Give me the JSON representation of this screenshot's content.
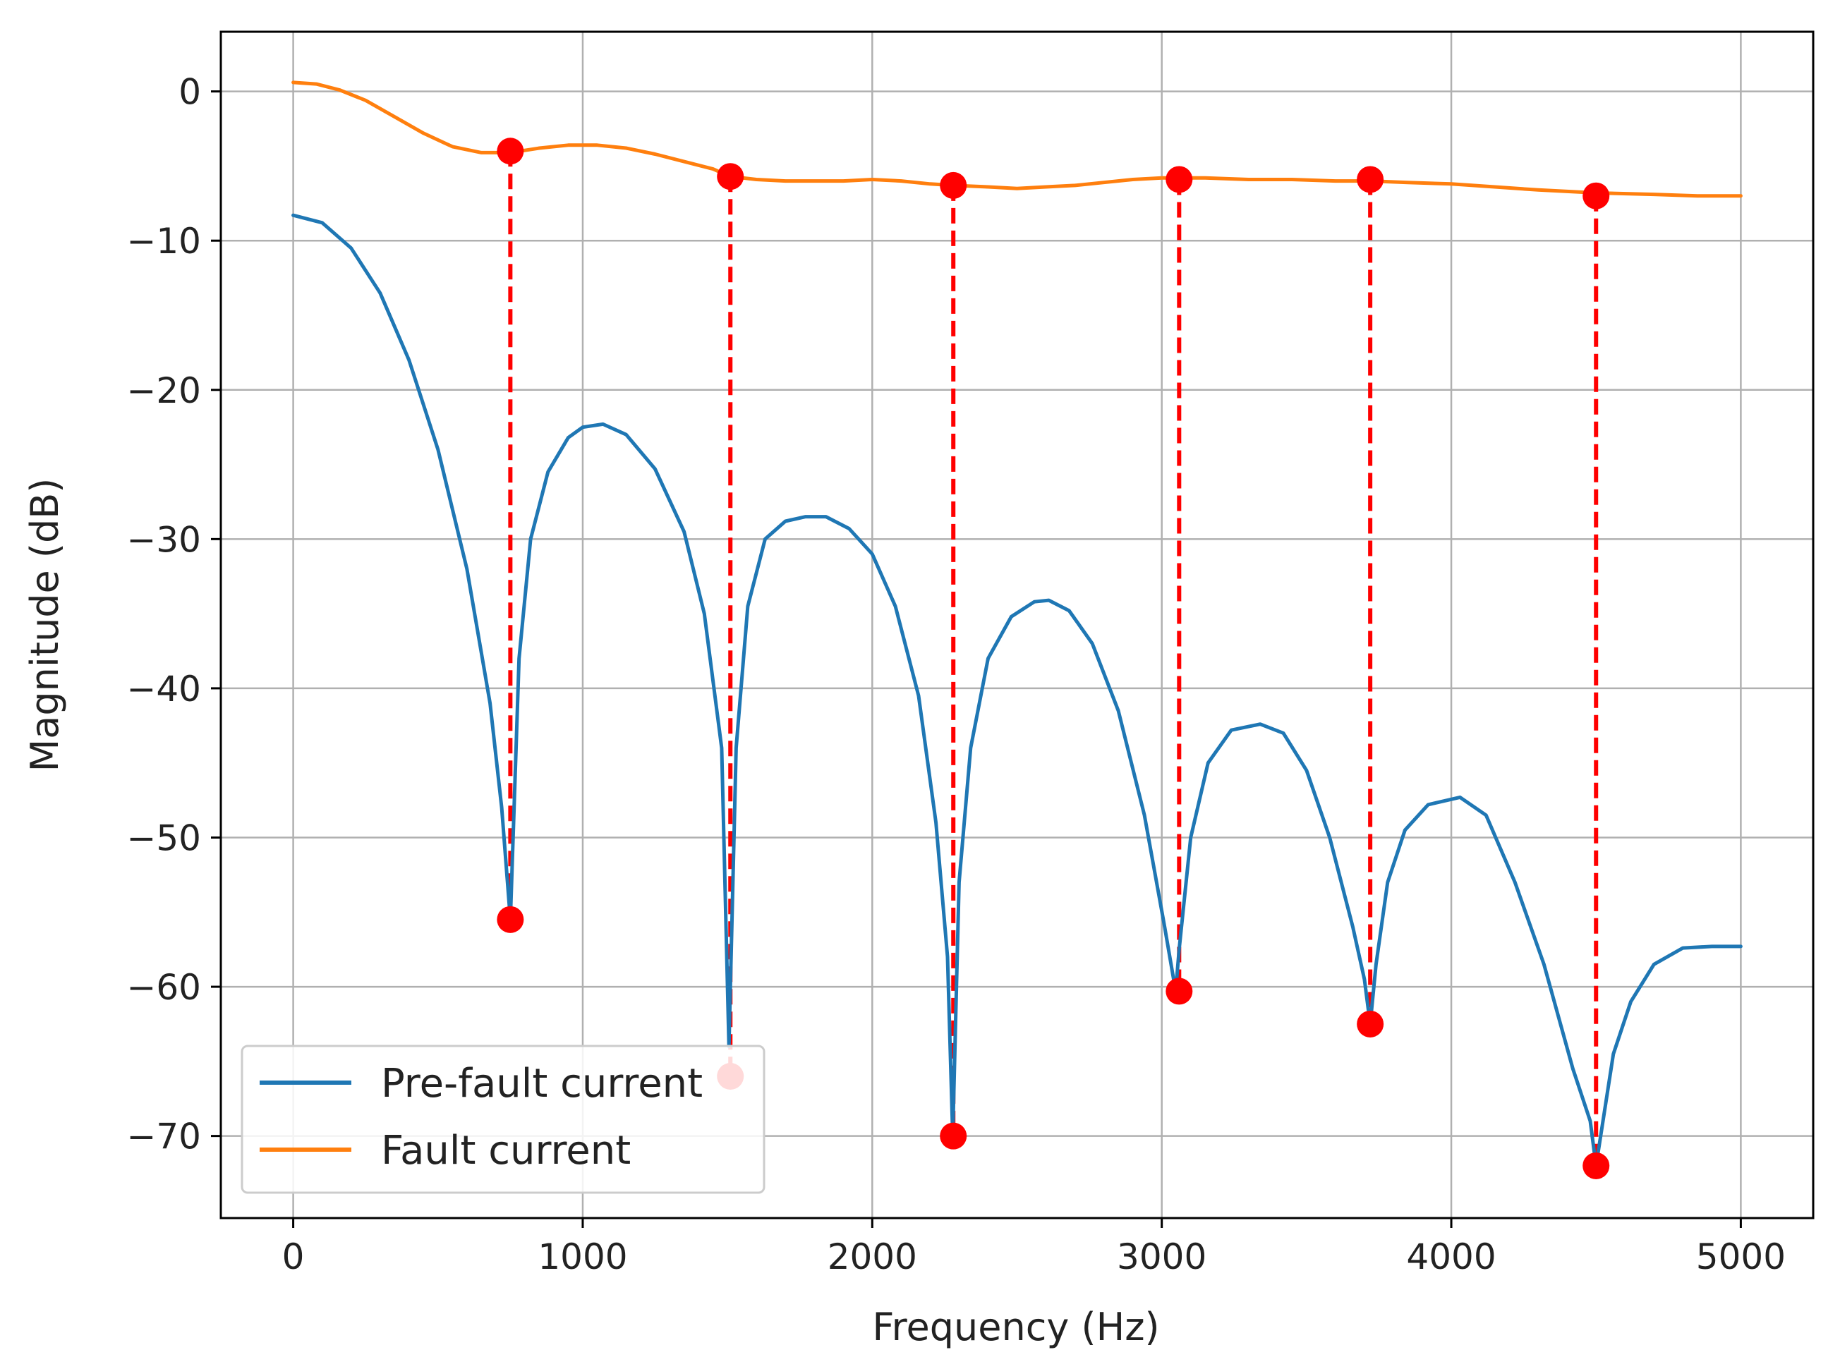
{
  "chart_data": {
    "type": "line",
    "title": "",
    "xlabel": "Frequency (Hz)",
    "ylabel": "Magnitude (dB)",
    "xlim": [
      -250,
      5250
    ],
    "ylim": [
      -75.5,
      4
    ],
    "xticks": [
      0,
      1000,
      2000,
      3000,
      4000,
      5000
    ],
    "xtick_labels": [
      "0",
      "1000",
      "2000",
      "3000",
      "4000",
      "5000"
    ],
    "yticks": [
      0,
      -10,
      -20,
      -30,
      -40,
      -50,
      -60,
      -70
    ],
    "ytick_labels": [
      "0",
      "−10",
      "−20",
      "−30",
      "−40",
      "−50",
      "−60",
      "−70"
    ],
    "grid": true,
    "legend_position": "lower-left",
    "colors": {
      "pre_fault": "#1f77b4",
      "fault": "#ff7f0e",
      "markers": "#ff0000",
      "grid": "#b0b0b0"
    },
    "series": [
      {
        "name": "Pre-fault current",
        "x": [
          0,
          100,
          200,
          300,
          400,
          500,
          600,
          680,
          720,
          750,
          780,
          820,
          880,
          950,
          1000,
          1070,
          1150,
          1250,
          1350,
          1420,
          1480,
          1505,
          1530,
          1570,
          1630,
          1700,
          1770,
          1840,
          1920,
          2000,
          2080,
          2160,
          2220,
          2260,
          2278,
          2300,
          2340,
          2400,
          2480,
          2560,
          2610,
          2680,
          2760,
          2850,
          2940,
          3010,
          3048,
          3060,
          3100,
          3160,
          3240,
          3340,
          3420,
          3500,
          3580,
          3660,
          3700,
          3720,
          3740,
          3780,
          3840,
          3920,
          4030,
          4120,
          4220,
          4320,
          4420,
          4480,
          4500,
          4520,
          4560,
          4620,
          4700,
          4800,
          4900,
          5000
        ],
        "values": [
          -8.3,
          -8.8,
          -10.5,
          -13.5,
          -18.0,
          -24.0,
          -32.0,
          -41.0,
          -48.0,
          -55.5,
          -38.0,
          -30.0,
          -25.5,
          -23.2,
          -22.5,
          -22.3,
          -23.0,
          -25.3,
          -29.5,
          -35.0,
          -44.0,
          -64.0,
          -44.0,
          -34.5,
          -30.0,
          -28.8,
          -28.5,
          -28.5,
          -29.3,
          -31.0,
          -34.5,
          -40.5,
          -49.0,
          -58.0,
          -70.0,
          -53.0,
          -44.0,
          -38.0,
          -35.2,
          -34.2,
          -34.1,
          -34.8,
          -37.0,
          -41.5,
          -48.5,
          -56.0,
          -60.3,
          -57.5,
          -50.0,
          -45.0,
          -42.8,
          -42.4,
          -43.0,
          -45.5,
          -50.0,
          -56.0,
          -59.5,
          -62.5,
          -58.5,
          -53.0,
          -49.5,
          -47.8,
          -47.3,
          -48.5,
          -53.0,
          -58.5,
          -65.5,
          -69.0,
          -72.0,
          -69.5,
          -64.5,
          -61.0,
          -58.5,
          -57.4,
          -57.3,
          -57.3
        ]
      },
      {
        "name": "Fault current",
        "x": [
          0,
          80,
          160,
          250,
          350,
          450,
          550,
          650,
          750,
          850,
          950,
          1050,
          1150,
          1250,
          1350,
          1450,
          1510,
          1600,
          1700,
          1800,
          1900,
          2000,
          2100,
          2200,
          2280,
          2400,
          2500,
          2600,
          2700,
          2800,
          2900,
          3000,
          3060,
          3150,
          3300,
          3450,
          3600,
          3720,
          3850,
          4000,
          4150,
          4300,
          4500,
          4700,
          4850,
          5000
        ],
        "values": [
          0.6,
          0.5,
          0.1,
          -0.6,
          -1.7,
          -2.8,
          -3.7,
          -4.1,
          -4.1,
          -3.8,
          -3.6,
          -3.6,
          -3.8,
          -4.2,
          -4.7,
          -5.2,
          -5.7,
          -5.9,
          -6.0,
          -6.0,
          -6.0,
          -5.9,
          -6.0,
          -6.2,
          -6.3,
          -6.4,
          -6.5,
          -6.4,
          -6.3,
          -6.1,
          -5.9,
          -5.8,
          -5.8,
          -5.8,
          -5.9,
          -5.9,
          -6.0,
          -6.0,
          -6.1,
          -6.2,
          -6.4,
          -6.6,
          -6.8,
          -6.9,
          -7.0,
          -7.0
        ]
      }
    ],
    "markers": [
      {
        "x": 750,
        "top": -4.0,
        "bottom": -55.5
      },
      {
        "x": 1510,
        "top": -5.7,
        "bottom": -66.0
      },
      {
        "x": 2280,
        "top": -6.3,
        "bottom": -70.0
      },
      {
        "x": 3060,
        "top": -5.9,
        "bottom": -60.3
      },
      {
        "x": 3720,
        "top": -5.9,
        "bottom": -62.5
      },
      {
        "x": 4500,
        "top": -7.0,
        "bottom": -72.0
      }
    ]
  }
}
